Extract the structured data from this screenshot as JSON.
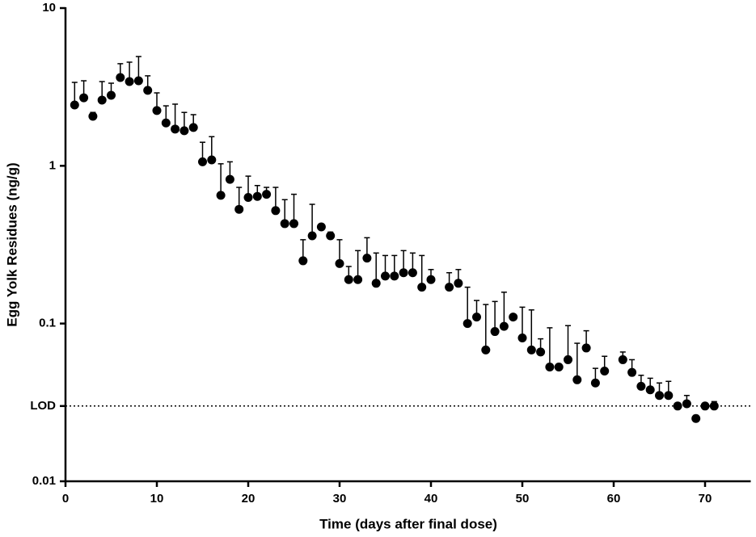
{
  "chart_data": {
    "type": "scatter",
    "x_label": "Time (days after final dose)",
    "y_label": "Egg Yolk Residues (ng/g)",
    "x": [
      1,
      2,
      3,
      4,
      5,
      6,
      7,
      8,
      9,
      10,
      11,
      12,
      13,
      14,
      15,
      16,
      17,
      18,
      19,
      20,
      21,
      22,
      23,
      24,
      25,
      26,
      27,
      28,
      29,
      30,
      31,
      32,
      33,
      34,
      35,
      36,
      37,
      38,
      39,
      40,
      42,
      43,
      44,
      45,
      46,
      47,
      48,
      49,
      50,
      51,
      52,
      53,
      54,
      55,
      56,
      57,
      58,
      59,
      61,
      62,
      63,
      64,
      65,
      66,
      67,
      68,
      69,
      70,
      71
    ],
    "values": [
      2.43,
      2.7,
      2.06,
      2.61,
      2.8,
      3.63,
      3.42,
      3.46,
      3.01,
      2.24,
      1.87,
      1.71,
      1.67,
      1.75,
      1.06,
      1.09,
      0.65,
      0.82,
      0.53,
      0.63,
      0.64,
      0.66,
      0.52,
      0.43,
      0.43,
      0.25,
      0.36,
      0.41,
      0.36,
      0.24,
      0.19,
      0.19,
      0.26,
      0.18,
      0.2,
      0.2,
      0.21,
      0.21,
      0.17,
      0.19,
      0.17,
      0.18,
      0.1,
      0.11,
      0.068,
      0.089,
      0.096,
      0.11,
      0.081,
      0.068,
      0.066,
      0.053,
      0.053,
      0.059,
      0.044,
      0.07,
      0.042,
      0.05,
      0.059,
      0.049,
      0.04,
      0.038,
      0.035,
      0.035,
      0.03,
      0.031,
      0.025,
      0.03,
      0.03
    ],
    "errors": [
      0.95,
      0.76,
      0.12,
      0.81,
      0.54,
      0.81,
      1.12,
      1.47,
      0.71,
      0.66,
      0.53,
      0.75,
      0.51,
      0.36,
      0.35,
      0.44,
      0.38,
      0.24,
      0.2,
      0.23,
      0.11,
      0.07,
      0.21,
      0.18,
      0.23,
      0.09,
      0.21,
      0,
      0.02,
      0.1,
      0.04,
      0.1,
      0.09,
      0.1,
      0.07,
      0.07,
      0.08,
      0.07,
      0.1,
      0.03,
      0.04,
      0.04,
      0.07,
      0.03,
      0.064,
      0.049,
      0.062,
      0,
      0.046,
      0.054,
      0.014,
      0.041,
      0.002,
      0.038,
      0.031,
      0.02,
      0.01,
      0.012,
      0.007,
      0.01,
      0.007,
      0.007,
      0.007,
      0.008,
      0,
      0.004,
      0,
      0,
      0.002
    ],
    "color": "#000000",
    "xlim": [
      0,
      75
    ],
    "xticks": [
      0,
      10,
      20,
      30,
      40,
      50,
      60,
      70
    ],
    "ylim": [
      0.01,
      10
    ],
    "log_scale": true,
    "yticks": [
      0.01,
      0.1,
      1,
      10,
      {
        "value": 0.03,
        "label": "LOD"
      }
    ]
  }
}
